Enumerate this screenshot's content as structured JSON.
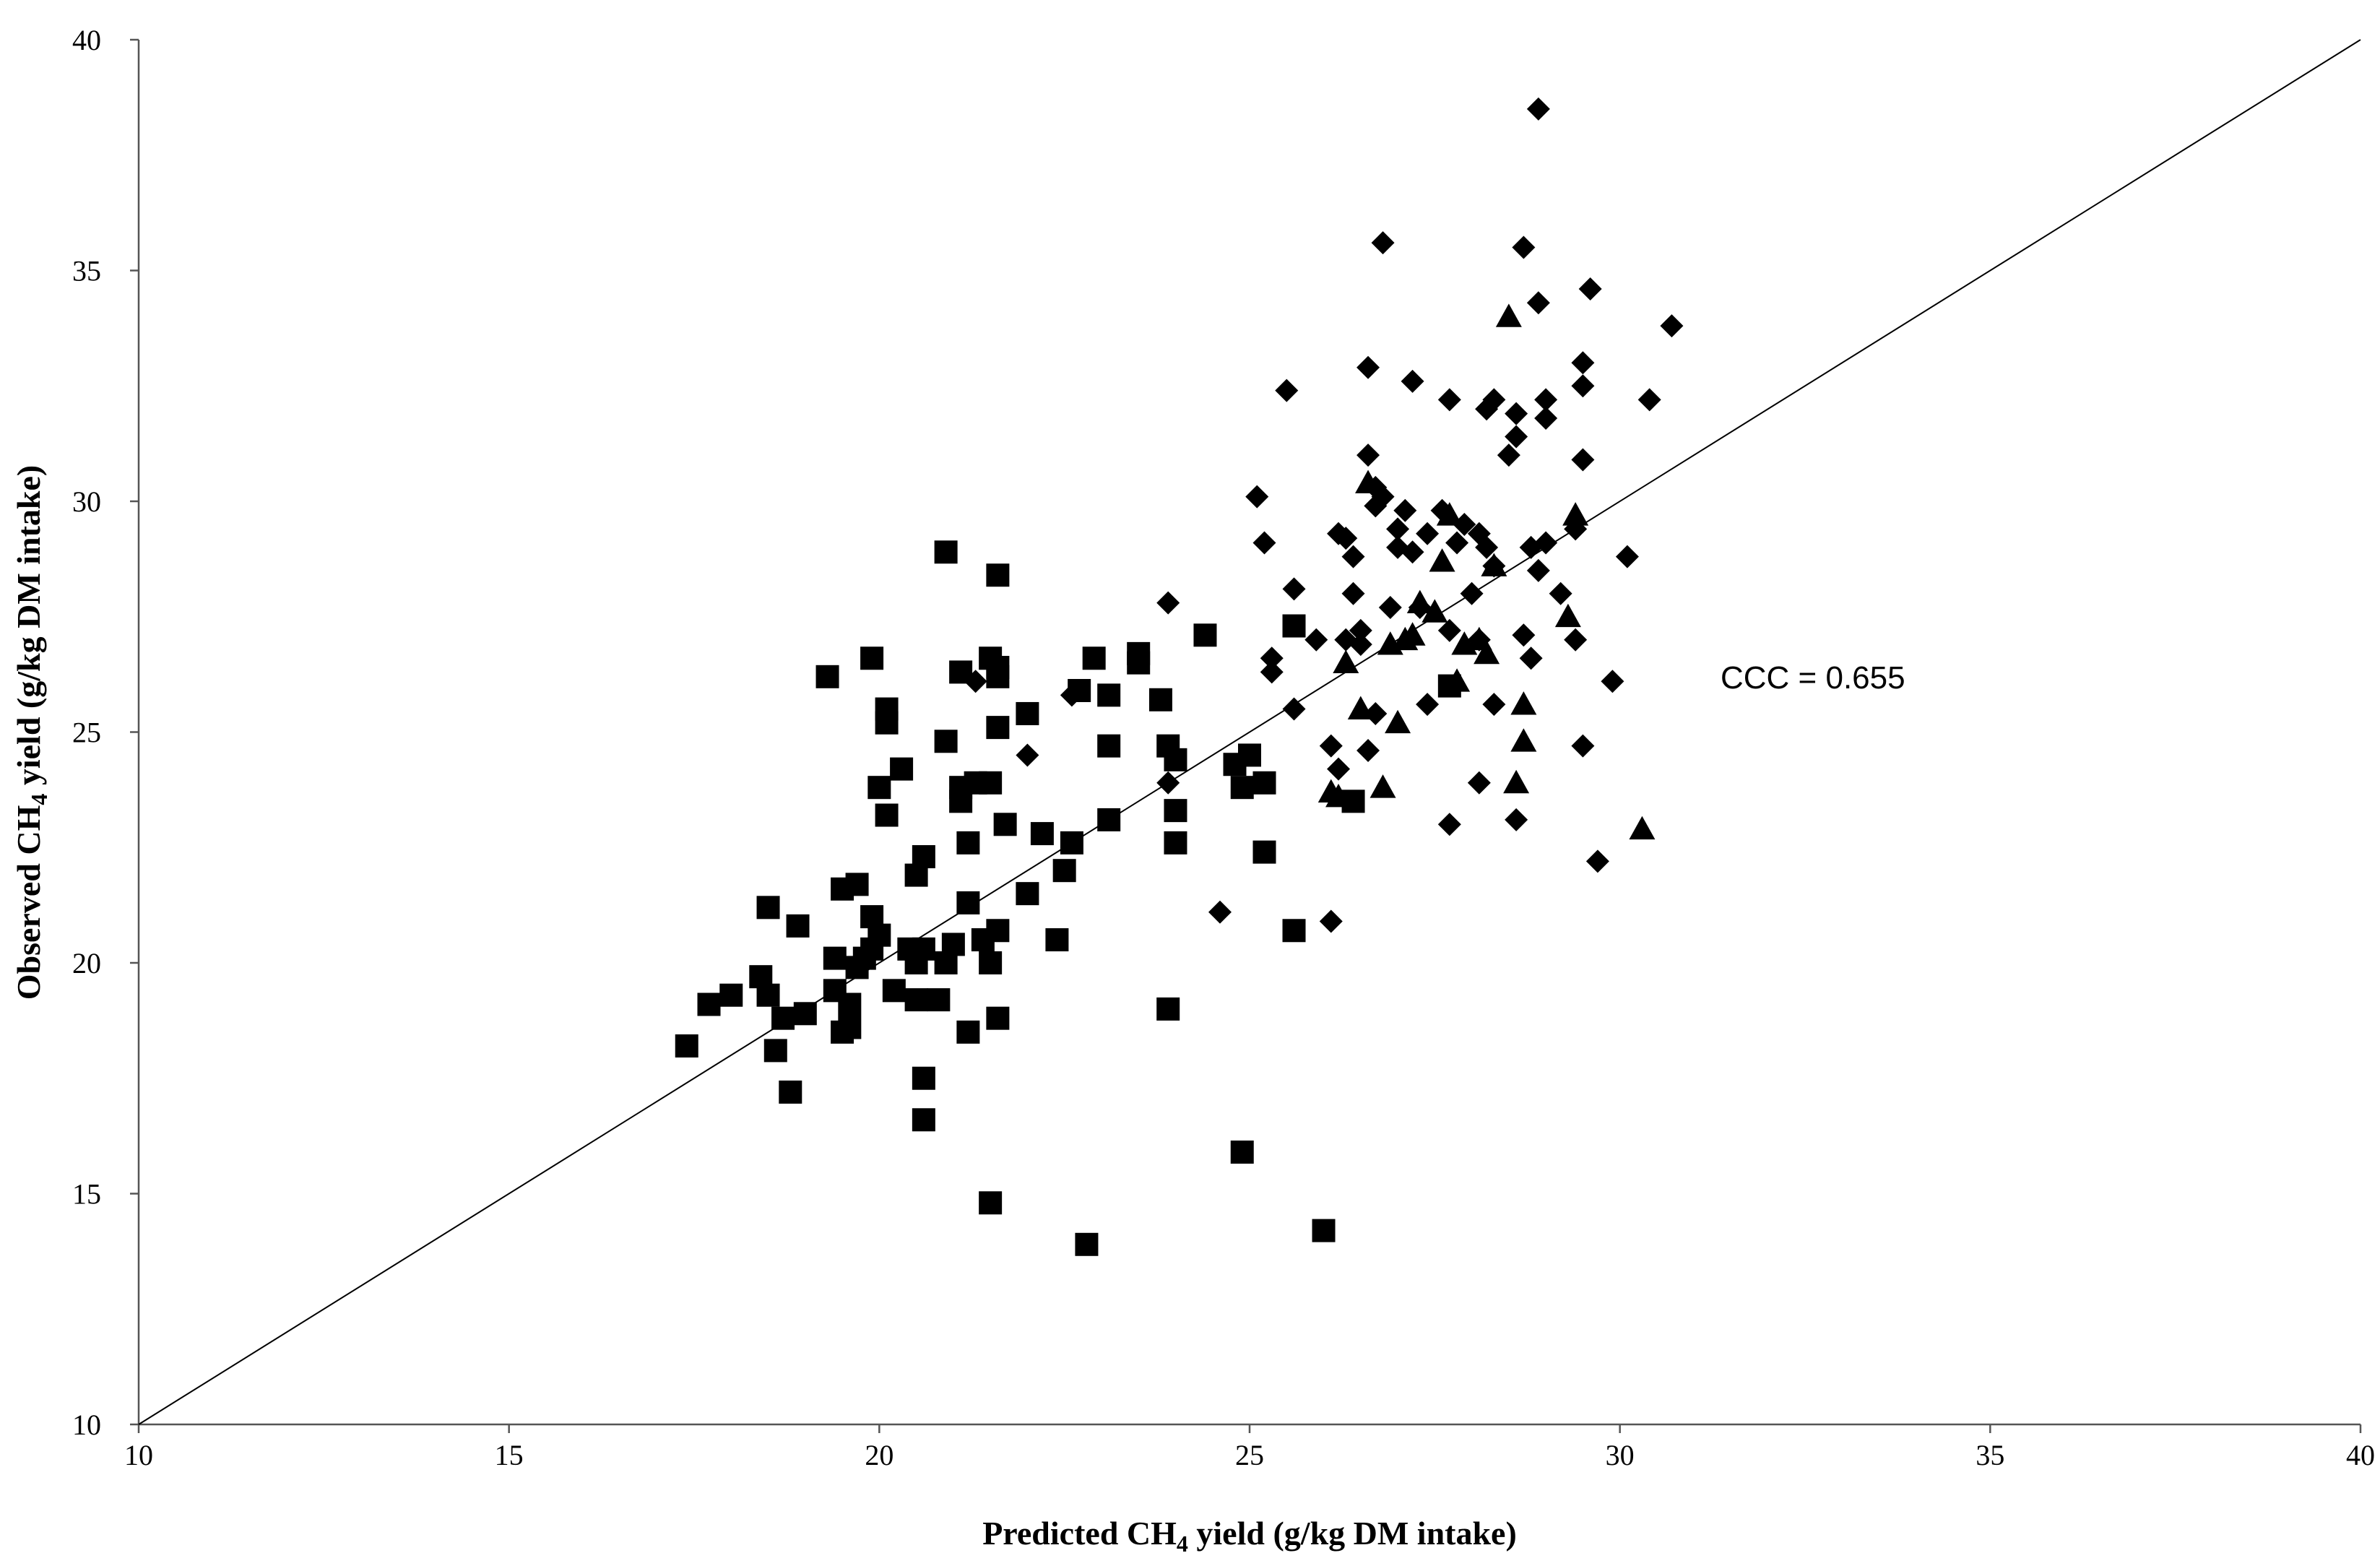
{
  "chart_data": {
    "type": "scatter",
    "xlabel": "Predicted CH4 yield (g/kg DM intake)",
    "ylabel": "Observed CH4 yield (g/kg DM intake)",
    "xlabel_parts": {
      "before": "Predicted CH",
      "sub": "4",
      "after": " yield (g/kg DM intake)"
    },
    "ylabel_parts": {
      "before": "Observed CH",
      "sub": "4",
      "after": " yield (g/kg DM intake)"
    },
    "xlim": [
      10,
      40
    ],
    "ylim": [
      10,
      40
    ],
    "x_ticks": [
      "10",
      "15",
      "20",
      "25",
      "30",
      "35",
      "40"
    ],
    "y_ticks": [
      "10",
      "15",
      "20",
      "25",
      "30",
      "35",
      "40"
    ],
    "grid": false,
    "annotation": "CCC =  0.655",
    "reference_line": {
      "from": [
        10,
        10
      ],
      "to": [
        40,
        40
      ]
    },
    "series": [
      {
        "marker": "square",
        "color": "#000000",
        "points": [
          [
            17.4,
            18.2
          ],
          [
            17.7,
            19.1
          ],
          [
            18.0,
            19.3
          ],
          [
            18.4,
            19.7
          ],
          [
            18.5,
            21.2
          ],
          [
            18.5,
            19.3
          ],
          [
            18.6,
            18.1
          ],
          [
            18.7,
            18.8
          ],
          [
            18.8,
            17.2
          ],
          [
            18.9,
            20.8
          ],
          [
            19.0,
            18.9
          ],
          [
            19.3,
            26.2
          ],
          [
            19.4,
            20.1
          ],
          [
            19.4,
            19.4
          ],
          [
            19.5,
            18.5
          ],
          [
            19.5,
            21.6
          ],
          [
            19.6,
            18.6
          ],
          [
            19.6,
            19.1
          ],
          [
            19.7,
            21.7
          ],
          [
            19.7,
            19.9
          ],
          [
            19.8,
            20.1
          ],
          [
            19.9,
            20.3
          ],
          [
            19.9,
            21.0
          ],
          [
            19.9,
            26.6
          ],
          [
            20.0,
            23.8
          ],
          [
            20.0,
            20.6
          ],
          [
            20.1,
            25.2
          ],
          [
            20.1,
            25.5
          ],
          [
            20.1,
            23.2
          ],
          [
            20.2,
            19.4
          ],
          [
            20.3,
            24.2
          ],
          [
            20.4,
            20.3
          ],
          [
            20.5,
            19.2
          ],
          [
            20.5,
            20.0
          ],
          [
            20.5,
            21.9
          ],
          [
            20.6,
            22.3
          ],
          [
            20.6,
            20.3
          ],
          [
            20.6,
            17.5
          ],
          [
            20.6,
            16.6
          ],
          [
            20.8,
            19.2
          ],
          [
            20.9,
            28.9
          ],
          [
            20.9,
            24.8
          ],
          [
            20.9,
            20.0
          ],
          [
            21.0,
            20.4
          ],
          [
            21.1,
            23.8
          ],
          [
            21.1,
            23.5
          ],
          [
            21.1,
            26.3
          ],
          [
            21.2,
            22.6
          ],
          [
            21.2,
            21.3
          ],
          [
            21.2,
            18.5
          ],
          [
            21.3,
            23.9
          ],
          [
            21.4,
            20.5
          ],
          [
            21.5,
            26.6
          ],
          [
            21.5,
            23.9
          ],
          [
            21.5,
            20.0
          ],
          [
            21.5,
            14.8
          ],
          [
            21.6,
            28.4
          ],
          [
            21.6,
            26.4
          ],
          [
            21.6,
            26.2
          ],
          [
            21.6,
            25.1
          ],
          [
            21.6,
            20.7
          ],
          [
            21.6,
            18.8
          ],
          [
            21.7,
            23.0
          ],
          [
            22.0,
            25.4
          ],
          [
            22.0,
            21.5
          ],
          [
            22.2,
            22.8
          ],
          [
            22.4,
            20.5
          ],
          [
            22.5,
            22.0
          ],
          [
            22.6,
            22.6
          ],
          [
            22.7,
            25.9
          ],
          [
            22.8,
            13.9
          ],
          [
            22.9,
            26.6
          ],
          [
            23.1,
            25.8
          ],
          [
            23.1,
            24.7
          ],
          [
            23.1,
            23.1
          ],
          [
            23.5,
            26.5
          ],
          [
            23.5,
            26.7
          ],
          [
            23.8,
            25.7
          ],
          [
            23.9,
            24.7
          ],
          [
            23.9,
            19.0
          ],
          [
            24.0,
            24.4
          ],
          [
            24.0,
            23.3
          ],
          [
            24.0,
            22.6
          ],
          [
            24.4,
            27.1
          ],
          [
            24.8,
            24.3
          ],
          [
            24.9,
            23.8
          ],
          [
            24.9,
            15.9
          ],
          [
            25.0,
            24.5
          ],
          [
            25.2,
            23.9
          ],
          [
            25.2,
            22.4
          ],
          [
            25.6,
            27.3
          ],
          [
            25.6,
            20.7
          ],
          [
            26.0,
            14.2
          ],
          [
            26.4,
            23.5
          ],
          [
            27.7,
            26.0
          ]
        ]
      },
      {
        "marker": "diamond",
        "color": "#000000",
        "points": [
          [
            21.3,
            26.1
          ],
          [
            22.0,
            24.5
          ],
          [
            22.6,
            25.8
          ],
          [
            23.9,
            27.8
          ],
          [
            23.9,
            23.9
          ],
          [
            24.6,
            21.1
          ],
          [
            25.1,
            30.1
          ],
          [
            25.2,
            29.1
          ],
          [
            25.3,
            26.6
          ],
          [
            25.3,
            26.3
          ],
          [
            25.5,
            32.4
          ],
          [
            25.6,
            28.1
          ],
          [
            25.6,
            25.5
          ],
          [
            25.9,
            27.0
          ],
          [
            26.1,
            24.7
          ],
          [
            26.1,
            20.9
          ],
          [
            26.2,
            29.3
          ],
          [
            26.2,
            24.2
          ],
          [
            26.3,
            29.2
          ],
          [
            26.3,
            27.0
          ],
          [
            26.4,
            28.8
          ],
          [
            26.4,
            28.0
          ],
          [
            26.5,
            27.2
          ],
          [
            26.5,
            26.9
          ],
          [
            26.6,
            32.9
          ],
          [
            26.6,
            31.0
          ],
          [
            26.6,
            24.6
          ],
          [
            26.7,
            30.3
          ],
          [
            26.7,
            29.9
          ],
          [
            26.7,
            25.4
          ],
          [
            26.8,
            35.6
          ],
          [
            26.8,
            30.1
          ],
          [
            26.9,
            27.7
          ],
          [
            27.0,
            29.4
          ],
          [
            27.0,
            29.0
          ],
          [
            27.1,
            29.8
          ],
          [
            27.2,
            32.6
          ],
          [
            27.2,
            28.9
          ],
          [
            27.3,
            27.7
          ],
          [
            27.4,
            29.3
          ],
          [
            27.4,
            25.6
          ],
          [
            27.6,
            29.8
          ],
          [
            27.7,
            32.2
          ],
          [
            27.7,
            27.2
          ],
          [
            27.7,
            23.0
          ],
          [
            27.8,
            29.1
          ],
          [
            27.9,
            29.5
          ],
          [
            28.0,
            28.0
          ],
          [
            28.1,
            29.3
          ],
          [
            28.1,
            27.0
          ],
          [
            28.1,
            23.9
          ],
          [
            28.2,
            29.0
          ],
          [
            28.2,
            32.0
          ],
          [
            28.3,
            32.2
          ],
          [
            28.3,
            28.6
          ],
          [
            28.3,
            25.6
          ],
          [
            28.5,
            31.0
          ],
          [
            28.6,
            31.9
          ],
          [
            28.6,
            31.4
          ],
          [
            28.6,
            23.1
          ],
          [
            28.7,
            35.5
          ],
          [
            28.7,
            27.1
          ],
          [
            28.8,
            29.0
          ],
          [
            28.8,
            26.6
          ],
          [
            28.9,
            38.5
          ],
          [
            28.9,
            34.3
          ],
          [
            28.9,
            28.5
          ],
          [
            29.0,
            31.8
          ],
          [
            29.0,
            29.1
          ],
          [
            29.0,
            32.2
          ],
          [
            29.2,
            28.0
          ],
          [
            29.4,
            27.0
          ],
          [
            29.4,
            29.4
          ],
          [
            29.5,
            33.0
          ],
          [
            29.5,
            32.5
          ],
          [
            29.5,
            30.9
          ],
          [
            29.5,
            24.7
          ],
          [
            29.6,
            34.6
          ],
          [
            29.7,
            22.2
          ],
          [
            29.9,
            26.1
          ],
          [
            30.1,
            28.8
          ],
          [
            30.4,
            32.2
          ],
          [
            30.7,
            33.8
          ]
        ]
      },
      {
        "marker": "triangle",
        "color": "#000000",
        "points": [
          [
            26.1,
            23.7
          ],
          [
            26.2,
            23.6
          ],
          [
            26.3,
            26.5
          ],
          [
            26.5,
            25.5
          ],
          [
            26.6,
            30.4
          ],
          [
            26.8,
            23.8
          ],
          [
            26.9,
            26.9
          ],
          [
            27.0,
            25.2
          ],
          [
            27.1,
            27.0
          ],
          [
            27.2,
            27.1
          ],
          [
            27.3,
            27.8
          ],
          [
            27.5,
            27.6
          ],
          [
            27.6,
            28.7
          ],
          [
            27.7,
            29.7
          ],
          [
            27.8,
            26.1
          ],
          [
            27.9,
            26.9
          ],
          [
            28.1,
            27.0
          ],
          [
            28.2,
            26.7
          ],
          [
            28.3,
            28.6
          ],
          [
            28.5,
            34.0
          ],
          [
            28.6,
            23.9
          ],
          [
            28.7,
            25.6
          ],
          [
            28.7,
            24.8
          ],
          [
            29.3,
            27.5
          ],
          [
            29.4,
            29.7
          ],
          [
            30.3,
            22.9
          ]
        ]
      }
    ]
  }
}
